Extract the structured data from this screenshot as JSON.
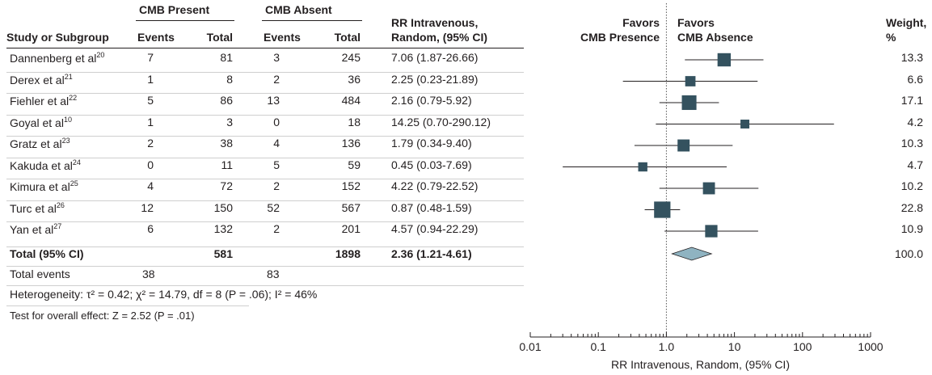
{
  "header": {
    "study_col": "Study or Subgroup",
    "group1": "CMB Present",
    "group2": "CMB Absent",
    "events": "Events",
    "total": "Total",
    "rr_line1": "RR Intravenous,",
    "rr_line2": "Random, (95% CI)",
    "favors_left_1": "Favors",
    "favors_left_2": "CMB Presence",
    "favors_right_1": "Favors",
    "favors_right_2": "CMB Absence",
    "weight_1": "Weight,",
    "weight_2": "%"
  },
  "studies": [
    {
      "name": "Dannenberg et al",
      "ref": "20",
      "e1": "7",
      "t1": "81",
      "e2": "3",
      "t2": "245",
      "rr": "7.06 (1.87-26.66)",
      "weight": "13.3"
    },
    {
      "name": "Derex et al",
      "ref": "21",
      "e1": "1",
      "t1": "8",
      "e2": "2",
      "t2": "36",
      "rr": "2.25 (0.23-21.89)",
      "weight": "6.6"
    },
    {
      "name": "Fiehler et al",
      "ref": "22",
      "e1": "5",
      "t1": "86",
      "e2": "13",
      "t2": "484",
      "rr": "2.16 (0.79-5.92)",
      "weight": "17.1"
    },
    {
      "name": "Goyal et al",
      "ref": "10",
      "e1": "1",
      "t1": "3",
      "e2": "0",
      "t2": "18",
      "rr": "14.25 (0.70-290.12)",
      "weight": "4.2"
    },
    {
      "name": "Gratz et al",
      "ref": "23",
      "e1": "2",
      "t1": "38",
      "e2": "4",
      "t2": "136",
      "rr": "1.79 (0.34-9.40)",
      "weight": "10.3"
    },
    {
      "name": "Kakuda et al",
      "ref": "24",
      "e1": "0",
      "t1": "11",
      "e2": "5",
      "t2": "59",
      "rr": "0.45 (0.03-7.69)",
      "weight": "4.7"
    },
    {
      "name": "Kimura et al",
      "ref": "25",
      "e1": "4",
      "t1": "72",
      "e2": "2",
      "t2": "152",
      "rr": "4.22 (0.79-22.52)",
      "weight": "10.2"
    },
    {
      "name": "Turc et al",
      "ref": "26",
      "e1": "12",
      "t1": "150",
      "e2": "52",
      "t2": "567",
      "rr": "0.87 (0.48-1.59)",
      "weight": "22.8"
    },
    {
      "name": "Yan et al",
      "ref": "27",
      "e1": "6",
      "t1": "132",
      "e2": "2",
      "t2": "201",
      "rr": "4.57 (0.94-22.29)",
      "weight": "10.9"
    }
  ],
  "total": {
    "label": "Total (95% CI)",
    "t1": "581",
    "t2": "1898",
    "rr": "2.36 (1.21-4.61)",
    "weight": "100.0"
  },
  "total_events": {
    "label": "Total events",
    "e1": "38",
    "e2": "83"
  },
  "heterogeneity": "Heterogeneity: τ² = 0.42; χ² = 14.79, df = 8 (P = .06); I² = 46%",
  "overall_effect": "Test for overall effect: Z = 2.52 (P = .01)",
  "chart_data": {
    "type": "scatter",
    "subtype": "forest",
    "xscale": "log",
    "xlim": [
      0.01,
      1000
    ],
    "xticks": [
      "0.01",
      "0.1",
      "1.0",
      "10",
      "100",
      "1000"
    ],
    "xlabel": "RR Intravenous, Random, (95% CI)",
    "reference_line": 1,
    "points": [
      {
        "label": "Dannenberg et al",
        "rr": 7.06,
        "lo": 1.87,
        "hi": 26.66,
        "weight": 13.3
      },
      {
        "label": "Derex et al",
        "rr": 2.25,
        "lo": 0.23,
        "hi": 21.89,
        "weight": 6.6
      },
      {
        "label": "Fiehler et al",
        "rr": 2.16,
        "lo": 0.79,
        "hi": 5.92,
        "weight": 17.1
      },
      {
        "label": "Goyal et al",
        "rr": 14.25,
        "lo": 0.7,
        "hi": 290.12,
        "weight": 4.2
      },
      {
        "label": "Gratz et al",
        "rr": 1.79,
        "lo": 0.34,
        "hi": 9.4,
        "weight": 10.3
      },
      {
        "label": "Kakuda et al",
        "rr": 0.45,
        "lo": 0.03,
        "hi": 7.69,
        "weight": 4.7
      },
      {
        "label": "Kimura et al",
        "rr": 4.22,
        "lo": 0.79,
        "hi": 22.52,
        "weight": 10.2
      },
      {
        "label": "Turc et al",
        "rr": 0.87,
        "lo": 0.48,
        "hi": 1.59,
        "weight": 22.8
      },
      {
        "label": "Yan et al",
        "rr": 4.57,
        "lo": 0.94,
        "hi": 22.29,
        "weight": 10.9
      }
    ],
    "pooled": {
      "label": "Total (95% CI)",
      "rr": 2.36,
      "lo": 1.21,
      "hi": 4.61
    },
    "colors": {
      "square": "#34525f",
      "diamond": "#8fb3c1",
      "line": "#231f20"
    }
  }
}
